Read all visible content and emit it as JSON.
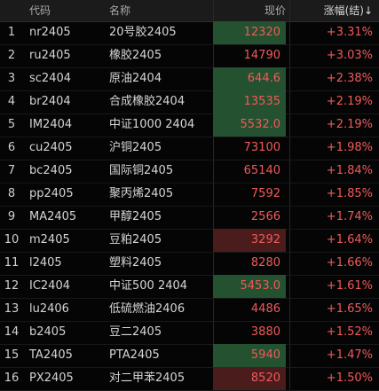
{
  "header": {
    "code": "代码",
    "name": "名称",
    "price": "现价",
    "change": "涨幅(结)",
    "sort_arrow": "↓"
  },
  "colors": {
    "up": "#f05a5a",
    "bg_green": "#24512f",
    "bg_red": "#4a1c1c"
  },
  "rows": [
    {
      "idx": "1",
      "code": "nr2405",
      "name": "20号胶2405",
      "price": "12320",
      "change": "+3.31%",
      "highlight": "green"
    },
    {
      "idx": "2",
      "code": "ru2405",
      "name": "橡胶2405",
      "price": "14790",
      "change": "+3.03%",
      "highlight": ""
    },
    {
      "idx": "3",
      "code": "sc2404",
      "name": "原油2404",
      "price": "644.6",
      "change": "+2.38%",
      "highlight": "green"
    },
    {
      "idx": "4",
      "code": "br2404",
      "name": "合成橡胶2404",
      "price": "13535",
      "change": "+2.19%",
      "highlight": "green"
    },
    {
      "idx": "5",
      "code": "IM2404",
      "name": "中证1000 2404",
      "price": "5532.0",
      "change": "+2.19%",
      "highlight": "green"
    },
    {
      "idx": "6",
      "code": "cu2405",
      "name": "沪铜2405",
      "price": "73100",
      "change": "+1.98%",
      "highlight": ""
    },
    {
      "idx": "7",
      "code": "bc2405",
      "name": "国际铜2405",
      "price": "65140",
      "change": "+1.84%",
      "highlight": ""
    },
    {
      "idx": "8",
      "code": "pp2405",
      "name": "聚丙烯2405",
      "price": "7592",
      "change": "+1.85%",
      "highlight": ""
    },
    {
      "idx": "9",
      "code": "MA2405",
      "name": "甲醇2405",
      "price": "2566",
      "change": "+1.74%",
      "highlight": ""
    },
    {
      "idx": "10",
      "code": "m2405",
      "name": "豆粕2405",
      "price": "3292",
      "change": "+1.64%",
      "highlight": "red"
    },
    {
      "idx": "11",
      "code": "l2405",
      "name": "塑料2405",
      "price": "8280",
      "change": "+1.66%",
      "highlight": ""
    },
    {
      "idx": "12",
      "code": "IC2404",
      "name": "中证500 2404",
      "price": "5453.0",
      "change": "+1.61%",
      "highlight": "green"
    },
    {
      "idx": "13",
      "code": "lu2406",
      "name": "低硫燃油2406",
      "price": "4486",
      "change": "+1.65%",
      "highlight": ""
    },
    {
      "idx": "14",
      "code": "b2405",
      "name": "豆二2405",
      "price": "3880",
      "change": "+1.52%",
      "highlight": ""
    },
    {
      "idx": "15",
      "code": "TA2405",
      "name": "PTA2405",
      "price": "5940",
      "change": "+1.47%",
      "highlight": "green"
    },
    {
      "idx": "16",
      "code": "PX2405",
      "name": "对二甲苯2405",
      "price": "8520",
      "change": "+1.50%",
      "highlight": "red"
    }
  ]
}
